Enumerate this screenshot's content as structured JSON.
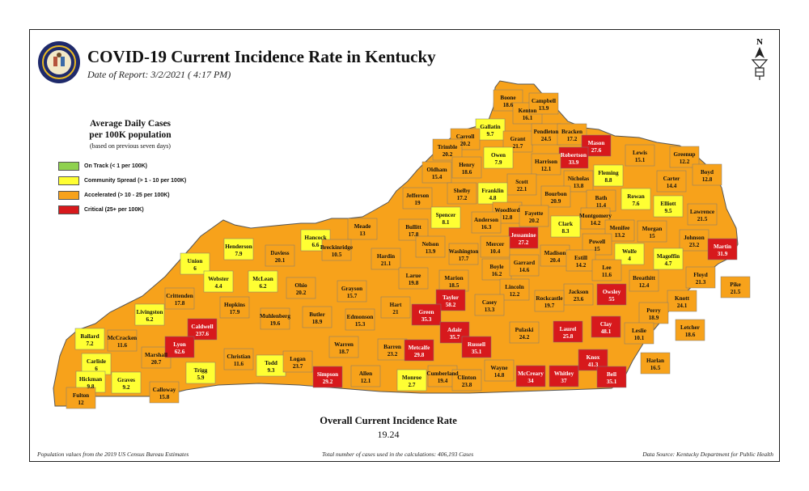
{
  "header": {
    "title": "COVID-19 Current Incidence Rate in Kentucky",
    "date": "Date of Report: 3/2/2021 ( 4:17 PM)"
  },
  "legend": {
    "title_line1": "Average Daily Cases",
    "title_line2": "per 100K population",
    "subtitle": "(based on previous seven days)",
    "items": [
      {
        "label": "On Track (< 1 per 100K)",
        "color": "#8fd14f"
      },
      {
        "label": "Community Spread (> 1 - 10 per 100K)",
        "color": "#ffff33"
      },
      {
        "label": "Accelerated (> 10 - 25 per 100K)",
        "color": "#f7a21b"
      },
      {
        "label": "Critical (25+ per 100K)",
        "color": "#d7191c"
      }
    ]
  },
  "overall": {
    "label": "Overall Current Incidence Rate",
    "value": "19.24"
  },
  "footer": {
    "left": "Population values from the 2019 US Census Bureau Estimates",
    "center": "Total number of cases used in the calculations: 406,193 Cases",
    "right": "Data Source: Kentucky Department for Public Health"
  },
  "counties": [
    {
      "name": "Boone",
      "value": "18.6"
    },
    {
      "name": "Kenton",
      "value": "16.1"
    },
    {
      "name": "Campbell",
      "value": "13.9"
    },
    {
      "name": "Gallatin",
      "value": "9.7"
    },
    {
      "name": "Grant",
      "value": "21.7"
    },
    {
      "name": "Pendleton",
      "value": "24.5"
    },
    {
      "name": "Bracken",
      "value": "17.2"
    },
    {
      "name": "Mason",
      "value": "27.6"
    },
    {
      "name": "Carroll",
      "value": "20.2"
    },
    {
      "name": "Trimble",
      "value": "20.2"
    },
    {
      "name": "Owen",
      "value": "7.9"
    },
    {
      "name": "Robertson",
      "value": "33.9"
    },
    {
      "name": "Lewis",
      "value": "15.1"
    },
    {
      "name": "Greenup",
      "value": "12.2"
    },
    {
      "name": "Henry",
      "value": "18.6"
    },
    {
      "name": "Harrison",
      "value": "12.1"
    },
    {
      "name": "Fleming",
      "value": "8.8"
    },
    {
      "name": "Boyd",
      "value": "12.8"
    },
    {
      "name": "Oldham",
      "value": "15.4"
    },
    {
      "name": "Scott",
      "value": "22.1"
    },
    {
      "name": "Nicholas",
      "value": "13.8"
    },
    {
      "name": "Carter",
      "value": "14.4"
    },
    {
      "name": "Franklin",
      "value": "4.8"
    },
    {
      "name": "Shelby",
      "value": "17.2"
    },
    {
      "name": "Jefferson",
      "value": "19"
    },
    {
      "name": "Bourbon",
      "value": "20.9"
    },
    {
      "name": "Bath",
      "value": "11.4"
    },
    {
      "name": "Rowan",
      "value": "7.6"
    },
    {
      "name": "Elliott",
      "value": "9.5"
    },
    {
      "name": "Lawrence",
      "value": "21.5"
    },
    {
      "name": "Woodford",
      "value": "12.8"
    },
    {
      "name": "Fayette",
      "value": "20.2"
    },
    {
      "name": "Montgomery",
      "value": "14.2"
    },
    {
      "name": "Spencer",
      "value": "8.1"
    },
    {
      "name": "Anderson",
      "value": "16.3"
    },
    {
      "name": "Clark",
      "value": "8.3"
    },
    {
      "name": "Menifee",
      "value": "13.2"
    },
    {
      "name": "Morgan",
      "value": "15"
    },
    {
      "name": "Johnson",
      "value": "23.2"
    },
    {
      "name": "Martin",
      "value": "31.9"
    },
    {
      "name": "Meade",
      "value": "13"
    },
    {
      "name": "Bullitt",
      "value": "17.8"
    },
    {
      "name": "Jessamine",
      "value": "27.2"
    },
    {
      "name": "Powell",
      "value": "15"
    },
    {
      "name": "Wolfe",
      "value": "4"
    },
    {
      "name": "Magoffin",
      "value": "4.7"
    },
    {
      "name": "Floyd",
      "value": "21.3"
    },
    {
      "name": "Henderson",
      "value": "7.9"
    },
    {
      "name": "Hancock",
      "value": "6.6"
    },
    {
      "name": "Breckinridge",
      "value": "10.5"
    },
    {
      "name": "Nelson",
      "value": "13.9"
    },
    {
      "name": "Washington",
      "value": "17.7"
    },
    {
      "name": "Mercer",
      "value": "10.4"
    },
    {
      "name": "Boyle",
      "value": "16.2"
    },
    {
      "name": "Garrard",
      "value": "14.6"
    },
    {
      "name": "Madison",
      "value": "20.4"
    },
    {
      "name": "Estill",
      "value": "14.2"
    },
    {
      "name": "Lee",
      "value": "11.6"
    },
    {
      "name": "Breathitt",
      "value": "12.4"
    },
    {
      "name": "Pike",
      "value": "21.5"
    },
    {
      "name": "Union",
      "value": "6"
    },
    {
      "name": "Daviess",
      "value": "20.1"
    },
    {
      "name": "Hardin",
      "value": "21.1"
    },
    {
      "name": "Larue",
      "value": "19.8"
    },
    {
      "name": "Marion",
      "value": "18.5"
    },
    {
      "name": "Lincoln",
      "value": "12.2"
    },
    {
      "name": "Jackson",
      "value": "23.6"
    },
    {
      "name": "Owsley",
      "value": "55"
    },
    {
      "name": "Knott",
      "value": "24.1"
    },
    {
      "name": "Webster",
      "value": "4.4"
    },
    {
      "name": "McLean",
      "value": "6.2"
    },
    {
      "name": "Ohio",
      "value": "20.2"
    },
    {
      "name": "Grayson",
      "value": "15.7"
    },
    {
      "name": "Hart",
      "value": "21"
    },
    {
      "name": "Taylor",
      "value": "58.2"
    },
    {
      "name": "Casey",
      "value": "13.3"
    },
    {
      "name": "Rockcastle",
      "value": "19.7"
    },
    {
      "name": "Perry",
      "value": "18.9"
    },
    {
      "name": "Letcher",
      "value": "18.6"
    },
    {
      "name": "Crittenden",
      "value": "17.8"
    },
    {
      "name": "Hopkins",
      "value": "17.9"
    },
    {
      "name": "Muhlenberg",
      "value": "19.6"
    },
    {
      "name": "Butler",
      "value": "18.9"
    },
    {
      "name": "Edmonson",
      "value": "15.3"
    },
    {
      "name": "Green",
      "value": "35.3"
    },
    {
      "name": "Adair",
      "value": "35.7"
    },
    {
      "name": "Russell",
      "value": "35.1"
    },
    {
      "name": "Pulaski",
      "value": "24.2"
    },
    {
      "name": "Laurel",
      "value": "25.8"
    },
    {
      "name": "Clay",
      "value": "48.1"
    },
    {
      "name": "Leslie",
      "value": "10.1"
    },
    {
      "name": "Harlan",
      "value": "16.5"
    },
    {
      "name": "Livingston",
      "value": "6.2"
    },
    {
      "name": "Caldwell",
      "value": "237.6"
    },
    {
      "name": "Ballard",
      "value": "7.2"
    },
    {
      "name": "McCracken",
      "value": "11.6"
    },
    {
      "name": "Marshall",
      "value": "20.7"
    },
    {
      "name": "Lyon",
      "value": "62.6"
    },
    {
      "name": "Christian",
      "value": "11.6"
    },
    {
      "name": "Todd",
      "value": "9.3"
    },
    {
      "name": "Logan",
      "value": "23.7"
    },
    {
      "name": "Warren",
      "value": "18.7"
    },
    {
      "name": "Barren",
      "value": "23.2"
    },
    {
      "name": "Metcalfe",
      "value": "29.8"
    },
    {
      "name": "Carlisle",
      "value": "6"
    },
    {
      "name": "Trigg",
      "value": "5.9"
    },
    {
      "name": "Hickman",
      "value": "9.8"
    },
    {
      "name": "Graves",
      "value": "9.2"
    },
    {
      "name": "Fulton",
      "value": "12"
    },
    {
      "name": "Calloway",
      "value": "15.8"
    },
    {
      "name": "Simpson",
      "value": "29.2"
    },
    {
      "name": "Allen",
      "value": "12.1"
    },
    {
      "name": "Monroe",
      "value": "2.7"
    },
    {
      "name": "Cumberland",
      "value": "19.4"
    },
    {
      "name": "Clinton",
      "value": "23.8"
    },
    {
      "name": "Wayne",
      "value": "14.8"
    },
    {
      "name": "McCreary",
      "value": "34"
    },
    {
      "name": "Whitley",
      "value": "37"
    },
    {
      "name": "Knox",
      "value": "41.3"
    },
    {
      "name": "Bell",
      "value": "35.1"
    }
  ]
}
